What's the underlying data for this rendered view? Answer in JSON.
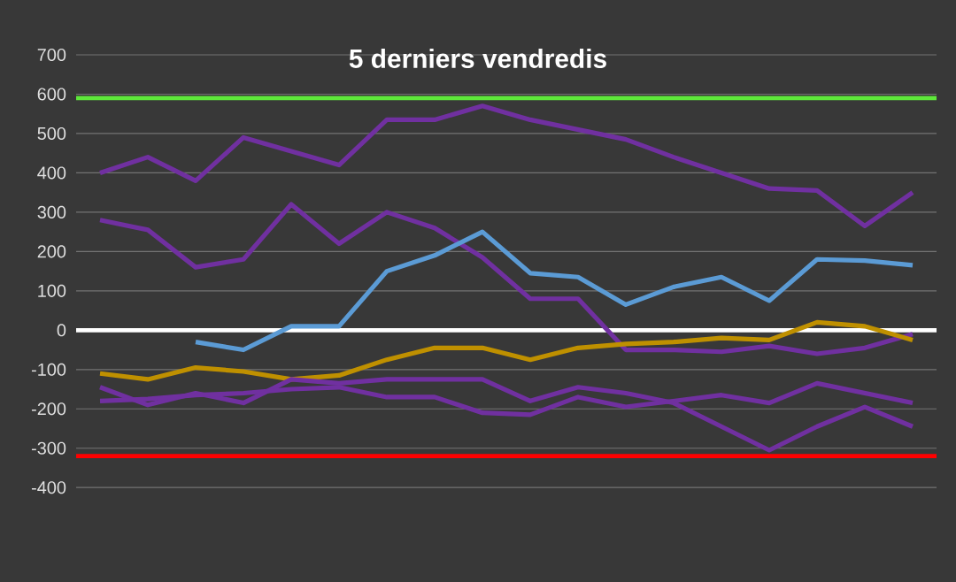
{
  "chart_data": {
    "type": "line",
    "title": "5 derniers vendredis",
    "categories": [
      null,
      null,
      null,
      null,
      null,
      null,
      null,
      null,
      null,
      null,
      null,
      null,
      null,
      null,
      null,
      null,
      null,
      null
    ],
    "series": [
      {
        "color": "#7030a0",
        "values": [
          400,
          440,
          380,
          490,
          455,
          420,
          535,
          535,
          570,
          535,
          510,
          485,
          440,
          400,
          360,
          355,
          265,
          350
        ]
      },
      {
        "color": "#7030a0",
        "values": [
          280,
          255,
          160,
          180,
          320,
          220,
          300,
          260,
          185,
          80,
          80,
          -50,
          -50,
          -55,
          -40,
          -60,
          -45,
          -10
        ]
      },
      {
        "color": "#5b9bd5",
        "values": [
          null,
          null,
          -30,
          -50,
          10,
          10,
          150,
          190,
          250,
          145,
          135,
          65,
          110,
          135,
          75,
          180,
          177,
          165
        ]
      },
      {
        "color": "#bf9000",
        "values": [
          -110,
          -125,
          -95,
          -105,
          -125,
          -115,
          -75,
          -45,
          -45,
          -75,
          -45,
          -35,
          -30,
          -20,
          -25,
          20,
          10,
          -25
        ]
      },
      {
        "color": "#7030a0",
        "values": [
          -145,
          -190,
          -160,
          -185,
          -125,
          -135,
          -125,
          -125,
          -125,
          -180,
          -145,
          -160,
          -185,
          -245,
          -305,
          -245,
          -195,
          -245
        ]
      },
      {
        "color": "#7030a0",
        "values": [
          -180,
          -175,
          -165,
          -160,
          -150,
          -145,
          -170,
          -170,
          -210,
          -215,
          -170,
          -195,
          -180,
          -165,
          -185,
          -135,
          -160,
          -185
        ]
      }
    ],
    "ylim": [
      -400,
      700
    ],
    "yticks": [
      -400,
      -300,
      -200,
      -100,
      0,
      100,
      200,
      300,
      400,
      500,
      600,
      700
    ],
    "grid": "y",
    "tick_labels": "y",
    "line_style": "solid",
    "marker": "none",
    "ref_lines": [
      {
        "axis": "y",
        "value": 590,
        "color": "#5ee83a"
      },
      {
        "axis": "y",
        "value": 0,
        "color": "#ffffff"
      },
      {
        "axis": "y",
        "value": -320,
        "color": "#ff0000"
      }
    ]
  }
}
